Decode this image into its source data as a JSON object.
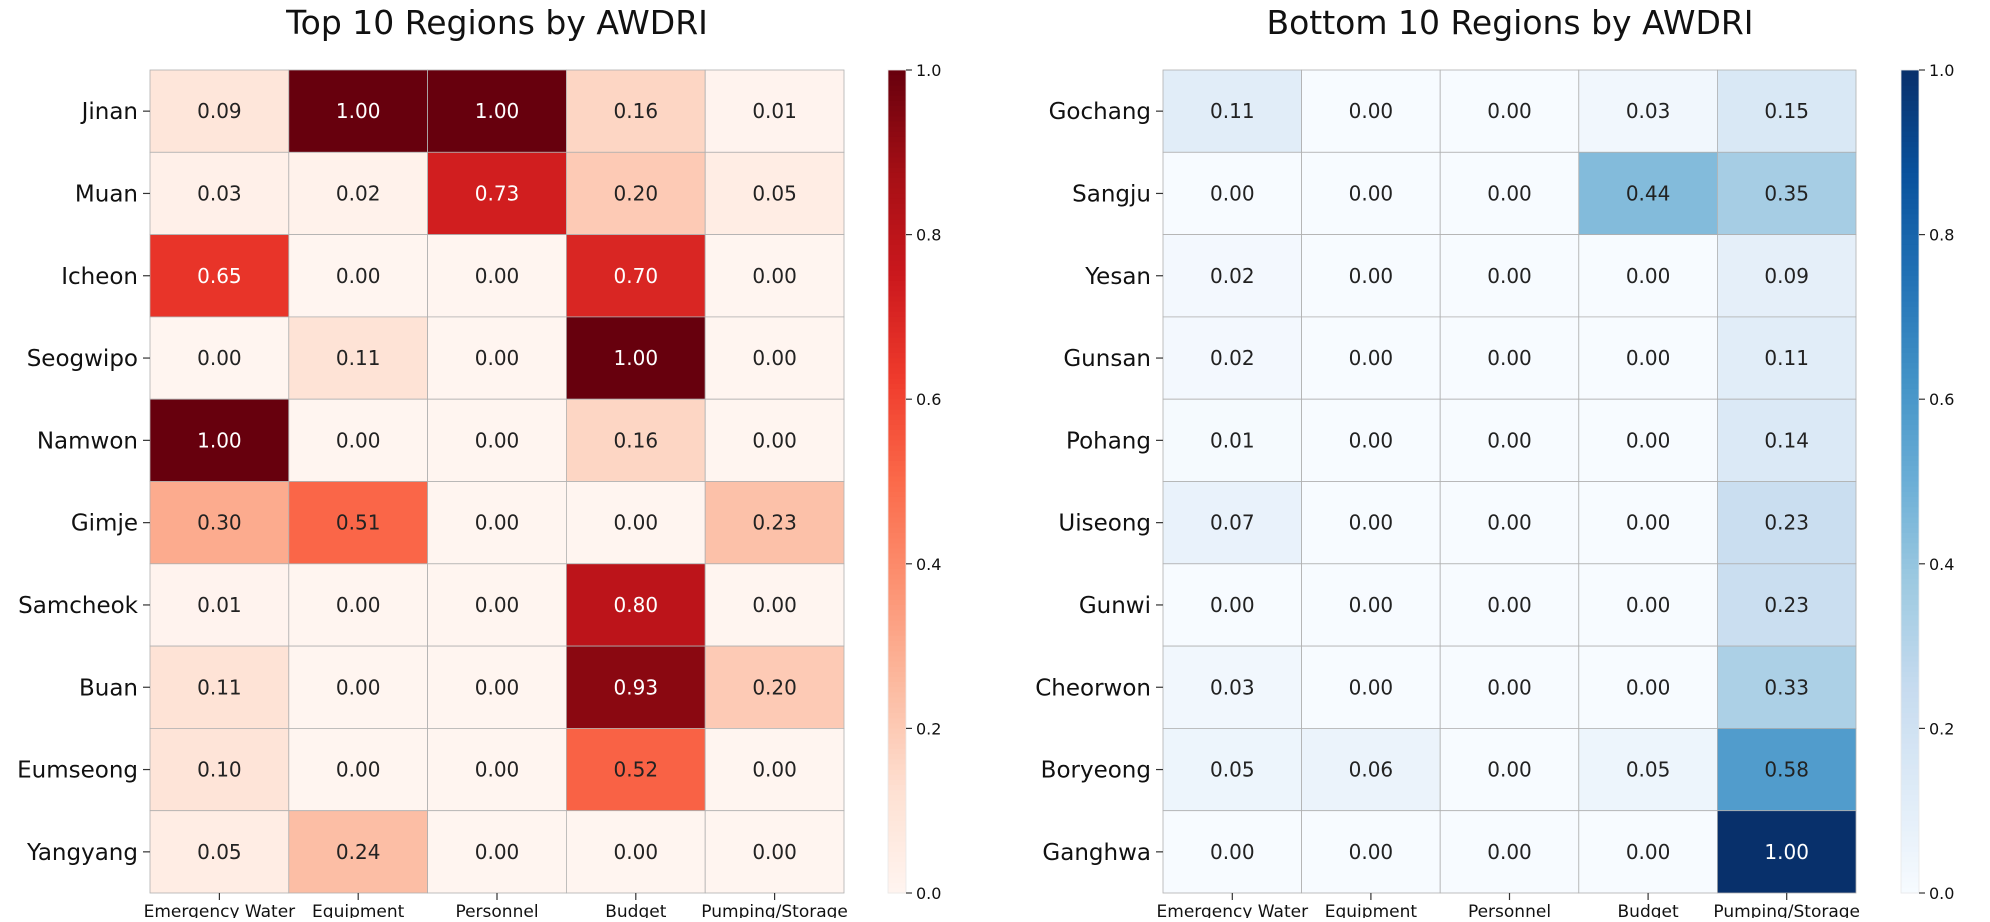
{
  "chart_data": [
    {
      "type": "heatmap",
      "title": "Top 10 Regions by AWDRI",
      "colormap": "Reds",
      "rows": [
        "Jinan",
        "Muan",
        "Icheon",
        "Seogwipo",
        "Namwon",
        "Gimje",
        "Samcheok",
        "Buan",
        "Eumseong",
        "Yangyang"
      ],
      "columns": [
        "Emergency Water",
        "Equipment",
        "Personnel",
        "Budget",
        "Pumping/Storage"
      ],
      "values": [
        [
          0.09,
          1.0,
          1.0,
          0.16,
          0.01
        ],
        [
          0.03,
          0.02,
          0.73,
          0.2,
          0.05
        ],
        [
          0.65,
          0.0,
          0.0,
          0.7,
          0.0
        ],
        [
          0.0,
          0.11,
          0.0,
          1.0,
          0.0
        ],
        [
          1.0,
          0.0,
          0.0,
          0.16,
          0.0
        ],
        [
          0.3,
          0.51,
          0.0,
          0.0,
          0.23
        ],
        [
          0.01,
          0.0,
          0.0,
          0.8,
          0.0
        ],
        [
          0.11,
          0.0,
          0.0,
          0.93,
          0.2
        ],
        [
          0.1,
          0.0,
          0.0,
          0.52,
          0.0
        ],
        [
          0.05,
          0.24,
          0.0,
          0.0,
          0.0
        ]
      ],
      "vmin": 0.0,
      "vmax": 1.0,
      "colorbar_ticks": [
        "0.0",
        "0.2",
        "0.4",
        "0.6",
        "0.8",
        "1.0"
      ]
    },
    {
      "type": "heatmap",
      "title": "Bottom 10 Regions by AWDRI",
      "colormap": "Blues",
      "rows": [
        "Gochang",
        "Sangju",
        "Yesan",
        "Gunsan",
        "Pohang",
        "Uiseong",
        "Gunwi",
        "Cheorwon",
        "Boryeong",
        "Ganghwa"
      ],
      "columns": [
        "Emergency Water",
        "Equipment",
        "Personnel",
        "Budget",
        "Pumping/Storage"
      ],
      "values": [
        [
          0.11,
          0.0,
          0.0,
          0.03,
          0.15
        ],
        [
          0.0,
          0.0,
          0.0,
          0.44,
          0.35
        ],
        [
          0.02,
          0.0,
          0.0,
          0.0,
          0.09
        ],
        [
          0.02,
          0.0,
          0.0,
          0.0,
          0.11
        ],
        [
          0.01,
          0.0,
          0.0,
          0.0,
          0.14
        ],
        [
          0.07,
          0.0,
          0.0,
          0.0,
          0.23
        ],
        [
          0.0,
          0.0,
          0.0,
          0.0,
          0.23
        ],
        [
          0.03,
          0.0,
          0.0,
          0.0,
          0.33
        ],
        [
          0.05,
          0.06,
          0.0,
          0.05,
          0.58
        ],
        [
          0.0,
          0.0,
          0.0,
          0.0,
          1.0
        ]
      ],
      "vmin": 0.0,
      "vmax": 1.0,
      "colorbar_ticks": [
        "0.0",
        "0.2",
        "0.4",
        "0.6",
        "0.8",
        "1.0"
      ]
    }
  ]
}
